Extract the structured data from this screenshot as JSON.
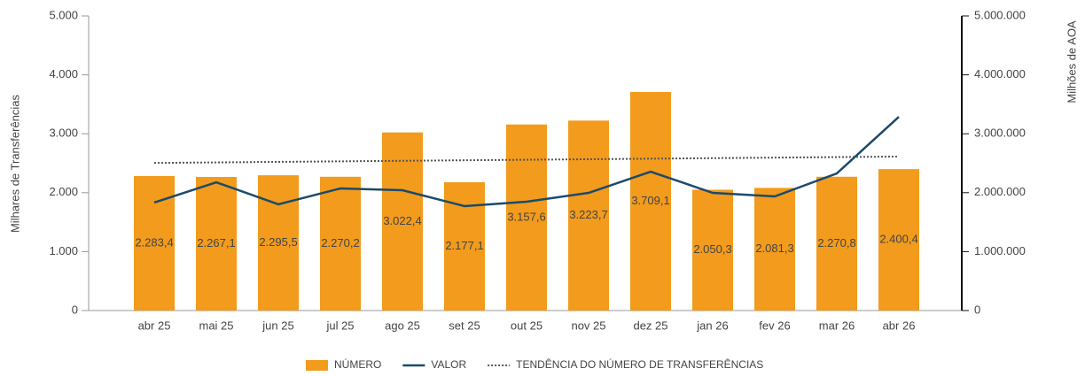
{
  "chart_data": {
    "type": "combo",
    "y_label": "Milhares de Transferências",
    "y2_label": "Milhões de AOA",
    "categories": [
      "abr 25",
      "mai 25",
      "jun 25",
      "jul 25",
      "ago 25",
      "set 25",
      "out 25",
      "nov 25",
      "dez 25",
      "jan 26",
      "fev 26",
      "mar 26",
      "abr 26"
    ],
    "ylim": [
      0,
      5000
    ],
    "yticks": [
      0,
      {
        "value": 1000,
        "label": "1.000"
      },
      {
        "value": 2000,
        "label": "2.000"
      },
      {
        "value": 3000,
        "label": "3.000"
      },
      {
        "value": 4000,
        "label": "4.000"
      },
      {
        "value": 5000,
        "label": "5.000"
      }
    ],
    "y2lim": [
      0,
      5000000
    ],
    "y2ticks": [
      0,
      {
        "value": 1000000,
        "label": "1.000.000"
      },
      {
        "value": 2000000,
        "label": "2.000.000"
      },
      {
        "value": 3000000,
        "label": "3.000.000"
      },
      {
        "value": 4000000,
        "label": "4.000.000"
      },
      {
        "value": 5000000,
        "label": "5.000.000"
      }
    ],
    "series": [
      {
        "name": "NÚMERO",
        "type": "bar",
        "color": "#f29b1c",
        "axis": "y",
        "values": [
          2283.4,
          2267.1,
          2295.5,
          2270.2,
          3022.4,
          2177.1,
          3157.6,
          3223.7,
          3709.1,
          2050.3,
          2081.3,
          2270.8,
          2400.4
        ],
        "value_labels": [
          "2.283,4",
          "2.267,1",
          "2.295,5",
          "2.270,2",
          "3.022,4",
          "2.177,1",
          "3.157,6",
          "3.223,7",
          "3.709,1",
          "2.050,3",
          "2.081,3",
          "2.270,8",
          "2.400,4"
        ]
      },
      {
        "name": "VALOR",
        "type": "line",
        "color": "#1b4a6b",
        "axis": "y2",
        "values": [
          1832000,
          2177000,
          1802000,
          2072000,
          2042000,
          1772000,
          1847000,
          1997000,
          2357000,
          1997000,
          1937000,
          2327000,
          3288000
        ]
      },
      {
        "name": "TENDÊNCIA DO NÚMERO DE TRANSFERÊNCIAS",
        "type": "line",
        "dash": "dotted",
        "color": "#555555",
        "axis": "y",
        "values": [
          2505,
          2514,
          2523,
          2532,
          2541,
          2550,
          2559,
          2568,
          2577,
          2586,
          2595,
          2604,
          2613
        ]
      }
    ]
  }
}
